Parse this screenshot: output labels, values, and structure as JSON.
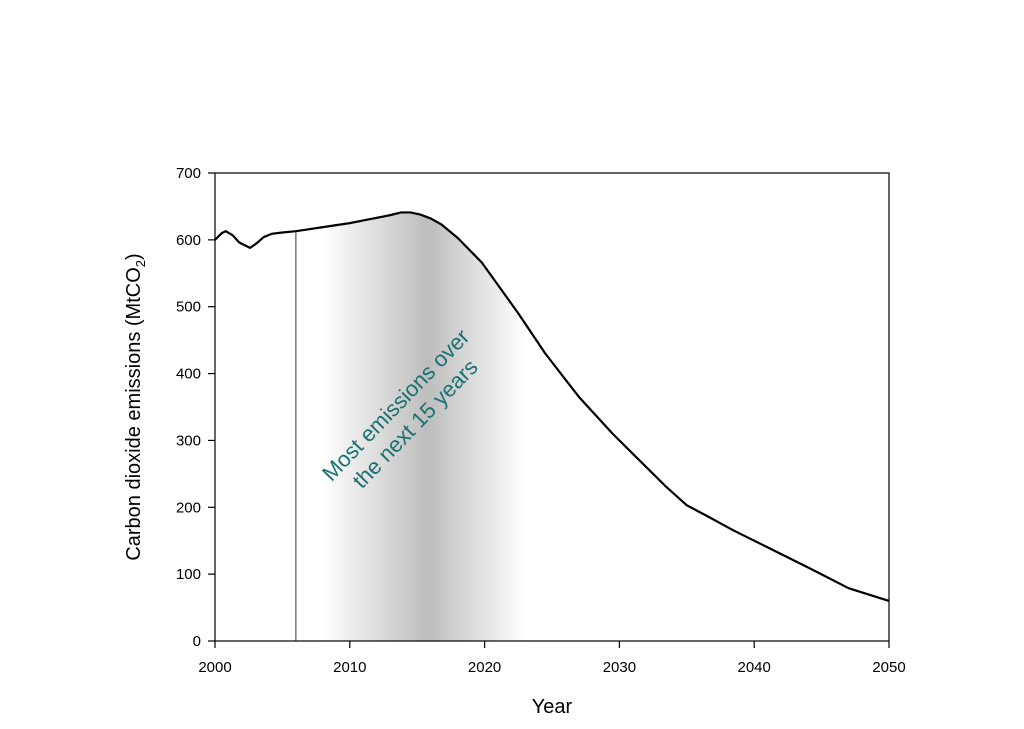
{
  "chart_data": {
    "type": "line",
    "title": "",
    "xlabel": "Year",
    "ylabel": {
      "main": "Carbon dioxide emissions (MtCO",
      "subscript": "2",
      "suffix": ")"
    },
    "xlim": [
      2000,
      2050
    ],
    "ylim": [
      0,
      700
    ],
    "x_ticks": [
      2000,
      2010,
      2020,
      2030,
      2040,
      2050
    ],
    "y_ticks": [
      0,
      100,
      200,
      300,
      400,
      500,
      600,
      700
    ],
    "grid": false,
    "legend": "none",
    "series": [
      {
        "color": "#000000",
        "x": [
          2000,
          2000.5,
          2000.8,
          2001.3,
          2001.8,
          2002.3,
          2002.6,
          2003.1,
          2003.6,
          2004.2,
          2005,
          2006,
          2007,
          2008,
          2009,
          2010,
          2011,
          2012,
          2013,
          2013.8,
          2014.5,
          2015.2,
          2016.0,
          2016.8,
          2018,
          2019.8,
          2022.5,
          2024.5,
          2027,
          2029.5,
          2032,
          2033.4,
          2035,
          2036.5,
          2038.5,
          2041,
          2044,
          2047,
          2050
        ],
        "y": [
          600,
          610,
          613,
          607,
          596,
          591,
          588,
          595,
          604,
          609,
          611,
          613,
          616,
          619,
          622,
          625,
          629,
          633,
          637,
          641,
          641,
          638,
          632,
          623,
          603,
          566,
          490,
          430,
          365,
          310,
          260,
          232,
          203,
          187,
          165,
          140,
          110,
          79,
          60
        ]
      }
    ],
    "annotations": [
      {
        "text": [
          "Most emissions over",
          "the next 15 years"
        ],
        "color": "#1a7274"
      }
    ],
    "shaded_band": {
      "x_start": 2008.0,
      "x_peak": 2015.8,
      "x_end": 2023.0,
      "color": "#bdbdbd"
    },
    "marker_line": {
      "x": 2006,
      "y_top": 612,
      "color": "#555555"
    }
  }
}
